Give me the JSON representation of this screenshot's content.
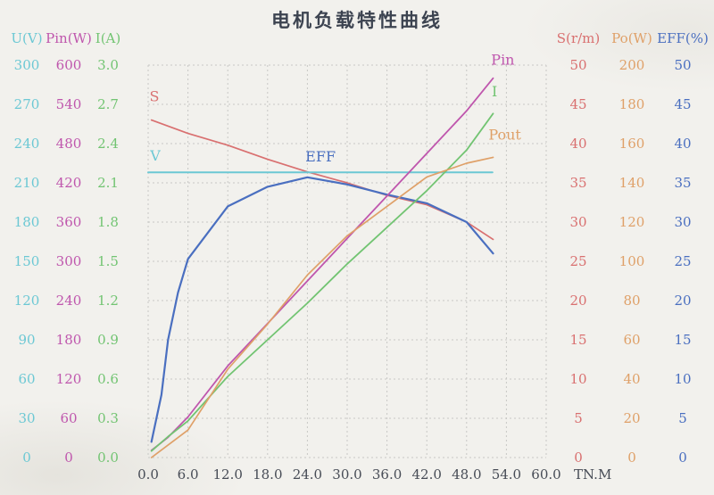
{
  "title": "电机负载特性曲线",
  "colors": {
    "voltage_cyan": "#6cc8d4",
    "pin_magenta": "#bf56ad",
    "current_green": "#72c472",
    "speed_red": "#d97070",
    "pout_orange": "#dfa068",
    "eff_blue": "#4a6fc0",
    "title_text": "#3c4350",
    "x_tick_text": "#474c56",
    "grid": "#c8c8c5"
  },
  "left_axes": [
    {
      "header": "U(V)",
      "color": "#6cc8d4",
      "ticks": [
        "300",
        "270",
        "240",
        "210",
        "180",
        "150",
        "120",
        "90",
        "60",
        "30",
        "0"
      ]
    },
    {
      "header": "Pin(W)",
      "color": "#bf56ad",
      "ticks": [
        "600",
        "540",
        "480",
        "420",
        "360",
        "300",
        "240",
        "180",
        "120",
        "60",
        "0"
      ]
    },
    {
      "header": "I(A)",
      "color": "#72c472",
      "ticks": [
        "3.0",
        "2.7",
        "2.4",
        "2.1",
        "1.8",
        "1.5",
        "1.2",
        "0.9",
        "0.6",
        "0.3",
        "0.0"
      ]
    }
  ],
  "right_axes": [
    {
      "header": "S(r/m)",
      "color": "#d97070",
      "ticks": [
        "50",
        "45",
        "40",
        "35",
        "30",
        "25",
        "20",
        "15",
        "10",
        "5",
        "0"
      ]
    },
    {
      "header": "Po(W)",
      "color": "#dfa068",
      "ticks": [
        "200",
        "180",
        "160",
        "140",
        "120",
        "100",
        "80",
        "60",
        "40",
        "20",
        "0"
      ]
    },
    {
      "header": "EFF(%)",
      "color": "#4a6fc0",
      "ticks": [
        "50",
        "45",
        "40",
        "35",
        "30",
        "25",
        "20",
        "15",
        "10",
        "5",
        "0"
      ]
    }
  ],
  "x_axis": {
    "ticks": [
      "0.0",
      "6.0",
      "12.0",
      "18.0",
      "24.0",
      "30.0",
      "36.0",
      "42.0",
      "48.0",
      "54.0",
      "60.0"
    ],
    "unit": "TN.M"
  },
  "chart_data": {
    "type": "line",
    "title": "电机负载特性曲线",
    "xlabel": "TN.M",
    "x_range": [
      0,
      60
    ],
    "grid": true,
    "grid_divisions": [
      10,
      10
    ],
    "legend_position": "inline-curve-labels",
    "series": [
      {
        "name": "S",
        "axis": "S(r/m)",
        "unit": "r/m",
        "color": "#d97070",
        "width": 1.7,
        "scale_max": 50,
        "x": [
          0.5,
          6,
          12,
          18,
          24,
          30,
          36,
          42,
          48,
          52
        ],
        "values": [
          43,
          41.3,
          39.8,
          38,
          36.4,
          35,
          33.4,
          32.2,
          30,
          27.8
        ],
        "label": {
          "text": "S",
          "x": 0.2,
          "v": 45.4
        }
      },
      {
        "name": "V",
        "axis": "U(V)",
        "unit": "V",
        "color": "#6cc8d4",
        "width": 2,
        "scale_max": 300,
        "x": [
          0,
          51.9
        ],
        "values": [
          218,
          218
        ],
        "label": {
          "text": "V",
          "x": 0.3,
          "v": 227
        }
      },
      {
        "name": "EFF",
        "axis": "EFF(%)",
        "unit": "%",
        "color": "#4a6fc0",
        "width": 2.2,
        "scale_max": 50,
        "x": [
          0.5,
          2,
          3,
          4.5,
          6,
          12,
          18,
          24,
          30,
          36,
          42,
          48,
          52
        ],
        "values": [
          2,
          8,
          15,
          21,
          25.3,
          32,
          34.5,
          35.7,
          34.8,
          33.5,
          32.4,
          30,
          26
        ],
        "label": {
          "text": "EFF",
          "x": 23.7,
          "v": 37.7
        }
      },
      {
        "name": "Pin",
        "axis": "Pin(W)",
        "unit": "W",
        "color": "#bf56ad",
        "width": 1.8,
        "scale_max": 600,
        "x": [
          0.5,
          3,
          6,
          12,
          18,
          24,
          30,
          36,
          42,
          48,
          52
        ],
        "values": [
          11,
          31,
          62,
          140,
          205,
          270,
          335,
          400,
          465,
          530,
          580
        ],
        "label": {
          "text": "Pin",
          "x": 51.7,
          "v": 601
        }
      },
      {
        "name": "I",
        "axis": "I(A)",
        "unit": "A",
        "color": "#72c472",
        "width": 1.8,
        "scale_max": 3,
        "x": [
          0.5,
          3,
          6,
          12,
          18,
          24,
          30,
          36,
          42,
          48,
          52
        ],
        "values": [
          0.05,
          0.16,
          0.28,
          0.62,
          0.9,
          1.18,
          1.48,
          1.76,
          2.04,
          2.35,
          2.63
        ],
        "label": {
          "text": "I",
          "x": 51.8,
          "v": 2.76
        }
      },
      {
        "name": "Pout",
        "axis": "Po(W)",
        "unit": "W",
        "color": "#dfa068",
        "width": 1.7,
        "scale_max": 200,
        "x": [
          0.5,
          6,
          12,
          18,
          24,
          30,
          36,
          42,
          48,
          52
        ],
        "values": [
          0,
          14,
          45,
          68,
          93,
          113,
          128,
          143,
          150,
          153
        ],
        "label": {
          "text": "Pout",
          "x": 51.3,
          "v": 162
        }
      }
    ]
  }
}
